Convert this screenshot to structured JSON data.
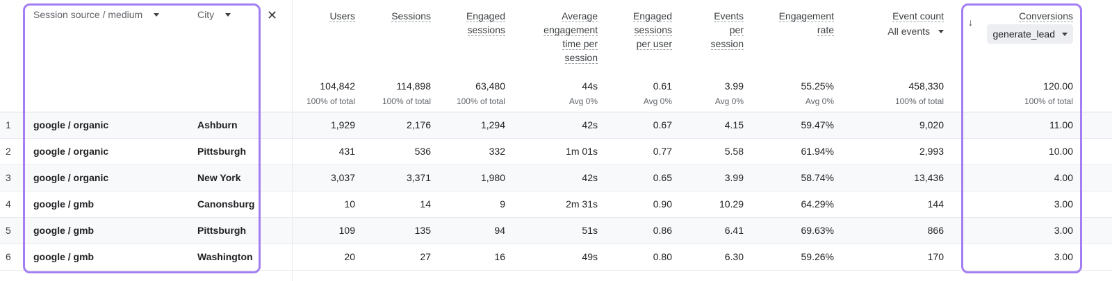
{
  "dimensions": {
    "source_medium_label": "Session source / medium",
    "city_label": "City",
    "remove_icon": "close-icon"
  },
  "metrics": [
    {
      "key": "users",
      "label": [
        "Users"
      ],
      "total": "104,842",
      "pct": "100% of total"
    },
    {
      "key": "sessions",
      "label": [
        "Sessions"
      ],
      "total": "114,898",
      "pct": "100% of total"
    },
    {
      "key": "engaged",
      "label": [
        "Engaged",
        "sessions"
      ],
      "total": "63,480",
      "pct": "100% of total"
    },
    {
      "key": "avg_eng",
      "label": [
        "Average",
        "engagement",
        "time per",
        "session"
      ],
      "total": "44s",
      "pct": "Avg 0%"
    },
    {
      "key": "eng_per_user",
      "label": [
        "Engaged",
        "sessions",
        "per user"
      ],
      "total": "0.61",
      "pct": "Avg 0%"
    },
    {
      "key": "events_per_session",
      "label": [
        "Events",
        "per",
        "session"
      ],
      "total": "3.99",
      "pct": "Avg 0%"
    },
    {
      "key": "eng_rate",
      "label": [
        "Engagement",
        "rate"
      ],
      "total": "55.25%",
      "pct": "Avg 0%"
    },
    {
      "key": "event_count",
      "label": [
        "Event count"
      ],
      "selector": "All events",
      "total": "458,330",
      "pct": "100% of total"
    },
    {
      "key": "conversions",
      "label": [
        "Conversions"
      ],
      "selector": "generate_lead",
      "total": "120.00",
      "pct": "100% of total"
    }
  ],
  "sort_icon": "arrow-down-icon",
  "rows": [
    {
      "idx": "1",
      "source": "google / organic",
      "city": "Ashburn",
      "values": [
        "1,929",
        "2,176",
        "1,294",
        "42s",
        "0.67",
        "4.15",
        "59.47%",
        "9,020",
        "11.00"
      ]
    },
    {
      "idx": "2",
      "source": "google / organic",
      "city": "Pittsburgh",
      "values": [
        "431",
        "536",
        "332",
        "1m 01s",
        "0.77",
        "5.58",
        "61.94%",
        "2,993",
        "10.00"
      ]
    },
    {
      "idx": "3",
      "source": "google / organic",
      "city": "New York",
      "values": [
        "3,037",
        "3,371",
        "1,980",
        "42s",
        "0.65",
        "3.99",
        "58.74%",
        "13,436",
        "4.00"
      ]
    },
    {
      "idx": "4",
      "source": "google / gmb",
      "city": "Canonsburg",
      "values": [
        "10",
        "14",
        "9",
        "2m 31s",
        "0.90",
        "10.29",
        "64.29%",
        "144",
        "3.00"
      ]
    },
    {
      "idx": "5",
      "source": "google / gmb",
      "city": "Pittsburgh",
      "values": [
        "109",
        "135",
        "94",
        "51s",
        "0.86",
        "6.41",
        "69.63%",
        "866",
        "3.00"
      ]
    },
    {
      "idx": "6",
      "source": "google / gmb",
      "city": "Washington",
      "values": [
        "20",
        "27",
        "16",
        "49s",
        "0.80",
        "6.30",
        "59.26%",
        "170",
        "3.00"
      ]
    }
  ],
  "highlight_color": "#a37ef2"
}
